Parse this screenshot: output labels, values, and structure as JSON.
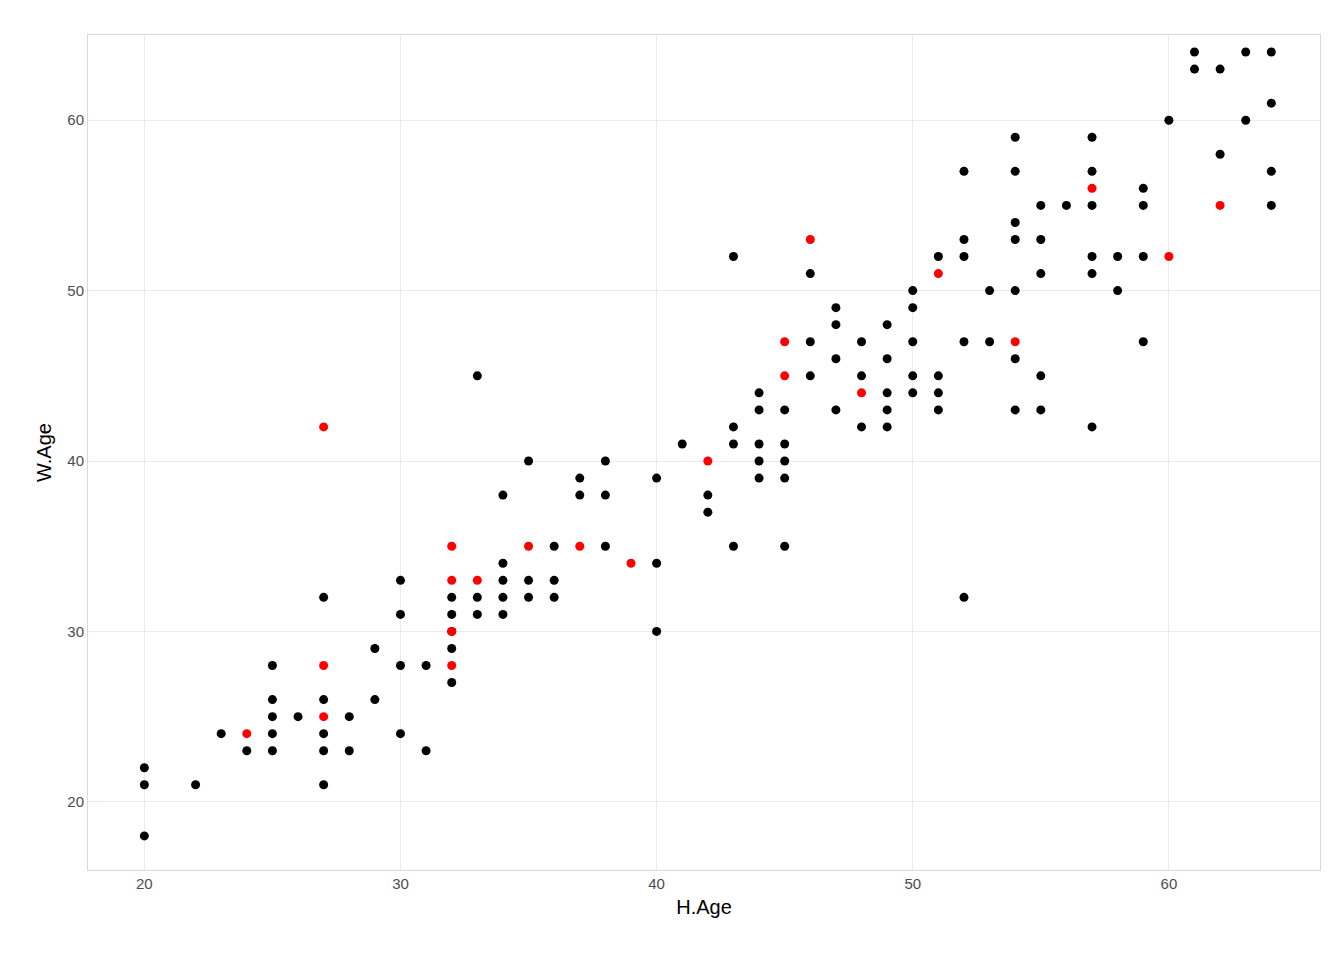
{
  "chart_data": {
    "type": "scatter",
    "x_label": "H.Age",
    "y_label": "W.Age",
    "xlim": [
      17.8,
      65.9
    ],
    "ylim": [
      16,
      65
    ],
    "xticks": [
      20,
      30,
      40,
      50,
      60
    ],
    "yticks": [
      20,
      30,
      40,
      50,
      60
    ],
    "grid": true,
    "marker": "circle",
    "series": [
      {
        "color": "#000000",
        "x": [
          20,
          20,
          20,
          22,
          23,
          24,
          25,
          25,
          25,
          25,
          25,
          26,
          27,
          27,
          27,
          27,
          27,
          28,
          28,
          29,
          29,
          30,
          30,
          30,
          30,
          31,
          31,
          32,
          32,
          32,
          32,
          32,
          33,
          33,
          33,
          34,
          34,
          34,
          34,
          34,
          35,
          35,
          35,
          36,
          36,
          36,
          37,
          37,
          38,
          38,
          38,
          40,
          40,
          40,
          41,
          42,
          42,
          43,
          43,
          43,
          43,
          44,
          44,
          44,
          44,
          44,
          45,
          45,
          45,
          45,
          45,
          46,
          46,
          46,
          47,
          47,
          47,
          47,
          48,
          48,
          48,
          49,
          49,
          49,
          49,
          49,
          50,
          50,
          50,
          50,
          50,
          51,
          51,
          51,
          51,
          52,
          52,
          52,
          52,
          52,
          53,
          53,
          54,
          54,
          54,
          54,
          54,
          54,
          54,
          55,
          55,
          55,
          55,
          55,
          56,
          57,
          57,
          57,
          57,
          57,
          57,
          58,
          58,
          59,
          59,
          59,
          59,
          60,
          61,
          61,
          62,
          62,
          63,
          63,
          64,
          64,
          64,
          64
        ],
        "y": [
          22,
          21,
          18,
          21,
          24,
          23,
          28,
          26,
          25,
          24,
          23,
          25,
          32,
          26,
          24,
          23,
          21,
          25,
          23,
          29,
          26,
          33,
          31,
          28,
          24,
          28,
          23,
          32,
          31,
          30,
          29,
          27,
          45,
          32,
          31,
          38,
          34,
          33,
          32,
          31,
          40,
          33,
          32,
          35,
          33,
          32,
          39,
          38,
          40,
          38,
          35,
          39,
          34,
          30,
          41,
          38,
          37,
          52,
          42,
          41,
          35,
          44,
          43,
          41,
          40,
          39,
          43,
          41,
          40,
          39,
          35,
          51,
          47,
          45,
          49,
          48,
          46,
          43,
          47,
          45,
          42,
          48,
          46,
          44,
          43,
          42,
          50,
          49,
          47,
          45,
          44,
          52,
          45,
          44,
          43,
          57,
          53,
          52,
          47,
          32,
          50,
          47,
          59,
          57,
          54,
          53,
          50,
          46,
          43,
          55,
          53,
          51,
          45,
          43,
          55,
          59,
          57,
          55,
          52,
          51,
          42,
          52,
          50,
          56,
          55,
          52,
          47,
          60,
          64,
          63,
          63,
          58,
          64,
          60,
          64,
          61,
          57,
          55
        ]
      },
      {
        "color": "#ff0000",
        "x": [
          24,
          27,
          27,
          27,
          32,
          32,
          32,
          32,
          33,
          35,
          37,
          39,
          42,
          45,
          45,
          46,
          48,
          51,
          54,
          57,
          60,
          62
        ],
        "y": [
          24,
          42,
          28,
          25,
          35,
          33,
          30,
          28,
          33,
          35,
          35,
          34,
          40,
          47,
          45,
          53,
          44,
          51,
          47,
          56,
          52,
          55
        ]
      }
    ]
  }
}
